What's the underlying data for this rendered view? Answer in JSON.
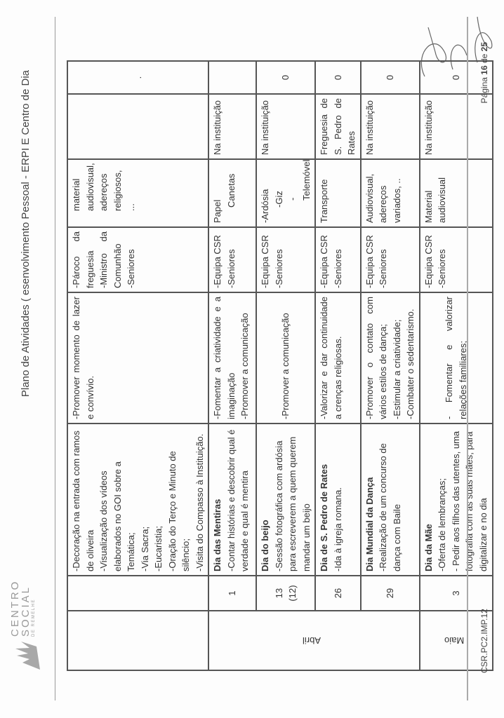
{
  "header": {
    "title": "Plano de Atividades ( esenvolvimento Pessoal - ERPI E Centro de Dia"
  },
  "footer": {
    "code": "CSR.PC2.IMP.12",
    "page_prefix": "Página ",
    "page_current": "16",
    "page_sep": " de ",
    "page_total": "25"
  },
  "logo": {
    "line1": "CENTRO",
    "line2": "SOCIAL",
    "line3": "DE REMELHE"
  },
  "months": {
    "april": "Abril",
    "may": "Maio"
  },
  "rows": [
    {
      "day": "",
      "title": "",
      "activity": [
        "-Decoração na entrada com ramos de oliveira",
        "-Visualização dos vídeos elaborados no GOI sobre a Temática;",
        "-Via Sacra;",
        "-Eucaristia;",
        "-Oração do Terço e Minuto de silêncio;",
        "-Visita do Compasso à Instituição."
      ],
      "objectives": [
        "-Promover momento de lazer e convívio."
      ],
      "participants": [
        "-Pároco da freguesia",
        "-Ministro da Comunhão",
        "-Seniores"
      ],
      "resources": [
        "material audiovisual, adereços religiosos, ..."
      ],
      "location": "",
      "cost": "."
    },
    {
      "day": "1",
      "title": "Dia das Mentiras",
      "activity": [
        "-Contar histórias e descobrir qual é verdade e qual é mentira"
      ],
      "objectives": [
        "-Fomentar a criatividade e a imaginação",
        "-Promover a comunicação"
      ],
      "participants": [
        "-Equipa CSR",
        "-Seniores"
      ],
      "resources": [
        "Papel",
        "Canetas"
      ],
      "location": "Na instituição",
      "cost": ""
    },
    {
      "day": "13",
      "day2": "(12)",
      "title": "Dia do beijo",
      "activity": [
        "-Sessão fotográfica com ardósia para escreverem a quem querem mandar um beijo"
      ],
      "objectives": [
        "-Promover a comunicação"
      ],
      "participants": [
        "-Equipa CSR",
        "-Seniores"
      ],
      "resources": [
        "-Ardósia",
        "-Giz",
        "-Telemóvel"
      ],
      "location": "Na instituição",
      "cost": "0"
    },
    {
      "day": "26",
      "title": "Dia de S. Pedro de Rates",
      "activity": [
        "-Ida à igreja romana."
      ],
      "objectives": [
        "-Valorizar e dar continuidade a crenças religiosas."
      ],
      "participants": [
        "-Equipa CSR",
        "-Seniores"
      ],
      "resources": [
        "Transporte"
      ],
      "location": "Freguesia de S. Pedro de Rates",
      "cost": "0"
    },
    {
      "day": "29",
      "title": "Dia Mundial da Dança",
      "activity": [
        "-Realização de um concurso de dança com Baile"
      ],
      "objectives": [
        "-Promover o contato com vários estilos de dança;",
        "-Estimular a criatividade;",
        "-Combater o sedentarismo."
      ],
      "participants": [
        "-Equipa CSR",
        "-Seniores"
      ],
      "resources": [
        "Audiovisual, adereços variados, .."
      ],
      "location": "Na instituição",
      "cost": "0"
    },
    {
      "day": "3",
      "title": "Dia da Mãe",
      "activity": [
        "-Oferta de lembranças;",
        "- Pedir aos filhos das utentes, uma fotografia com as suas mães, para digitalizar e no dia"
      ],
      "objectives": [
        "- Fomentar e valorizar relações familiares;"
      ],
      "participants": [
        "-Equipa CSR",
        "-Seniores"
      ],
      "resources": [
        "Material audiovisual"
      ],
      "location": "Na instituição",
      "cost": "0"
    }
  ]
}
